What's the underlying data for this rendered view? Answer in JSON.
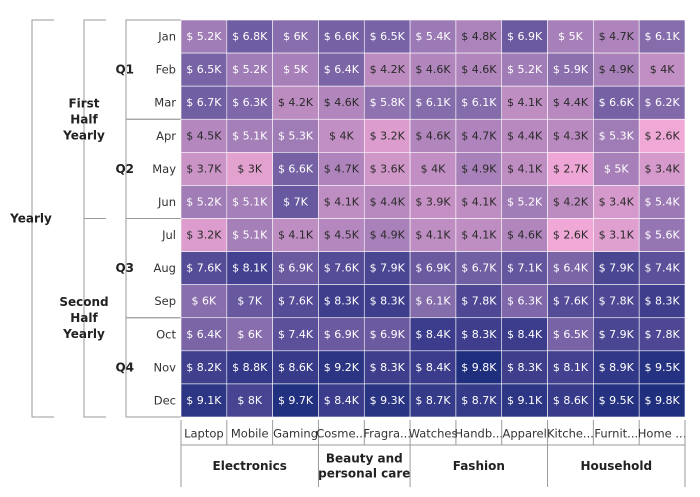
{
  "chart_data": {
    "type": "heatmap",
    "value_prefix": "$ ",
    "value_suffix": "K",
    "y_hierarchy": {
      "year": "Yearly",
      "halves": [
        {
          "label": [
            "First",
            "Half",
            "Yearly"
          ],
          "quarters": [
            "Q1",
            "Q2"
          ]
        },
        {
          "label": [
            "Second",
            "Half",
            "Yearly"
          ],
          "quarters": [
            "Q3",
            "Q4"
          ]
        }
      ],
      "months": [
        "Jan",
        "Feb",
        "Mar",
        "Apr",
        "May",
        "Jun",
        "Jul",
        "Aug",
        "Sep",
        "Oct",
        "Nov",
        "Dec"
      ]
    },
    "x_hierarchy": {
      "categories": [
        {
          "label": [
            "Electronics"
          ],
          "span": 3
        },
        {
          "label": [
            "Beauty and",
            "personal care"
          ],
          "span": 2
        },
        {
          "label": [
            "Fashion"
          ],
          "span": 3
        },
        {
          "label": [
            "Household"
          ],
          "span": 3
        }
      ],
      "products": [
        "Laptop",
        "Mobile",
        "Gaming",
        "Cosme...",
        "Fragra...",
        "Watches",
        "Handb...",
        "Apparel",
        "Kitche...",
        "Furnit...",
        "Home ..."
      ]
    },
    "values": [
      [
        5.2,
        6.8,
        6,
        6.6,
        6.5,
        5.4,
        4.8,
        6.9,
        5,
        4.7,
        6.1
      ],
      [
        6.5,
        5.2,
        5,
        6.4,
        4.2,
        4.6,
        4.6,
        5.2,
        5.9,
        4.9,
        4
      ],
      [
        6.7,
        6.3,
        4.2,
        4.6,
        5.8,
        6.1,
        6.1,
        4.1,
        4.4,
        6.6,
        6.2
      ],
      [
        4.5,
        5.1,
        5.3,
        4,
        3.2,
        4.6,
        4.7,
        4.4,
        4.3,
        5.3,
        2.6
      ],
      [
        3.7,
        3,
        6.6,
        4.7,
        3.6,
        4,
        4.9,
        4.1,
        2.7,
        5,
        3.4
      ],
      [
        5.2,
        5.1,
        7,
        4.1,
        4.4,
        3.9,
        4.1,
        5.2,
        4.2,
        3.4,
        5.4
      ],
      [
        3.2,
        5.1,
        4.1,
        4.5,
        4.9,
        4.1,
        4.1,
        4.6,
        2.6,
        3.1,
        5.6
      ],
      [
        7.6,
        8.1,
        6.9,
        7.6,
        7.9,
        6.9,
        6.7,
        7.1,
        6.4,
        7.9,
        7.4
      ],
      [
        6,
        7,
        7.6,
        8.3,
        8.3,
        6.1,
        7.8,
        6.3,
        7.6,
        7.8,
        8.3
      ],
      [
        6.4,
        6,
        7.4,
        6.9,
        6.9,
        8.4,
        8.3,
        8.4,
        6.5,
        7.9,
        7.8
      ],
      [
        8.2,
        8.8,
        8.6,
        9.2,
        8.3,
        8.4,
        9.8,
        8.3,
        8.1,
        8.9,
        9.5
      ],
      [
        9.1,
        8,
        9.7,
        8.4,
        9.3,
        8.7,
        8.7,
        9.1,
        8.6,
        9.5,
        9.8
      ]
    ],
    "color_scale": {
      "min_value": 2.6,
      "max_value": 9.8,
      "stops": [
        "#f0a8d6",
        "#c08ec2",
        "#9a79b4",
        "#6a5aa0",
        "#3c3d8c",
        "#1f2f7e"
      ]
    }
  }
}
